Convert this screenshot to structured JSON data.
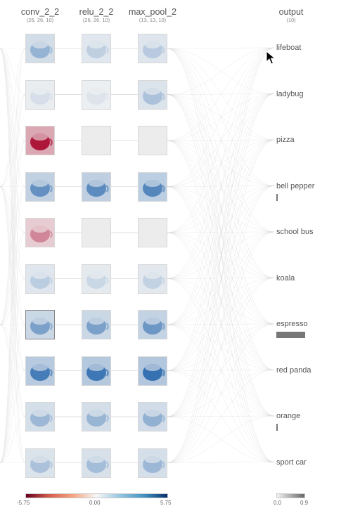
{
  "columns": [
    {
      "name": "conv_2_2",
      "shape": "(26, 26, 10)"
    },
    {
      "name": "relu_2_2",
      "shape": "(26, 26, 10)"
    },
    {
      "name": "max_pool_2",
      "shape": "(13, 13, 10)"
    },
    {
      "name": "output",
      "shape": "(10)"
    }
  ],
  "classes": [
    {
      "label": "lifeboat",
      "score": 0.0
    },
    {
      "label": "ladybug",
      "score": 0.0
    },
    {
      "label": "pizza",
      "score": 0.0
    },
    {
      "label": "bell pepper",
      "score": 0.02
    },
    {
      "label": "school bus",
      "score": 0.0
    },
    {
      "label": "koala",
      "score": 0.0
    },
    {
      "label": "espresso",
      "score": 0.9
    },
    {
      "label": "red panda",
      "score": 0.0
    },
    {
      "label": "orange",
      "score": 0.05
    },
    {
      "label": "sport car",
      "score": 0.0
    }
  ],
  "selected_channel": 7,
  "channel_activations": [
    {
      "conv": 2.5,
      "relu": 1.4,
      "pool": 1.6
    },
    {
      "conv": 0.8,
      "relu": 0.6,
      "pool": 1.9
    },
    {
      "conv": -5.2,
      "relu": 0,
      "pool": 0
    },
    {
      "conv": 3.8,
      "relu": 4.0,
      "pool": 4.2
    },
    {
      "conv": -2.6,
      "relu": 0,
      "pool": 0
    },
    {
      "conv": 1.5,
      "relu": 1.1,
      "pool": 1.3
    },
    {
      "conv": 3.2,
      "relu": 3.2,
      "pool": 3.6
    },
    {
      "conv": 4.6,
      "relu": 4.8,
      "pool": 5.0
    },
    {
      "conv": 2.3,
      "relu": 2.4,
      "pool": 2.6
    },
    {
      "conv": 1.9,
      "relu": 2.1,
      "pool": 2.3
    }
  ],
  "legend": {
    "activation": {
      "min": "-5.75",
      "mid": "0.00",
      "max": "5.75"
    },
    "output": {
      "min": "0.0",
      "max": "0.9"
    }
  },
  "colors": {
    "negative": "#b2182b",
    "positive": "#2166ac",
    "bar": "#777777"
  },
  "icons": {
    "cursor": "arrow-cursor-icon"
  }
}
